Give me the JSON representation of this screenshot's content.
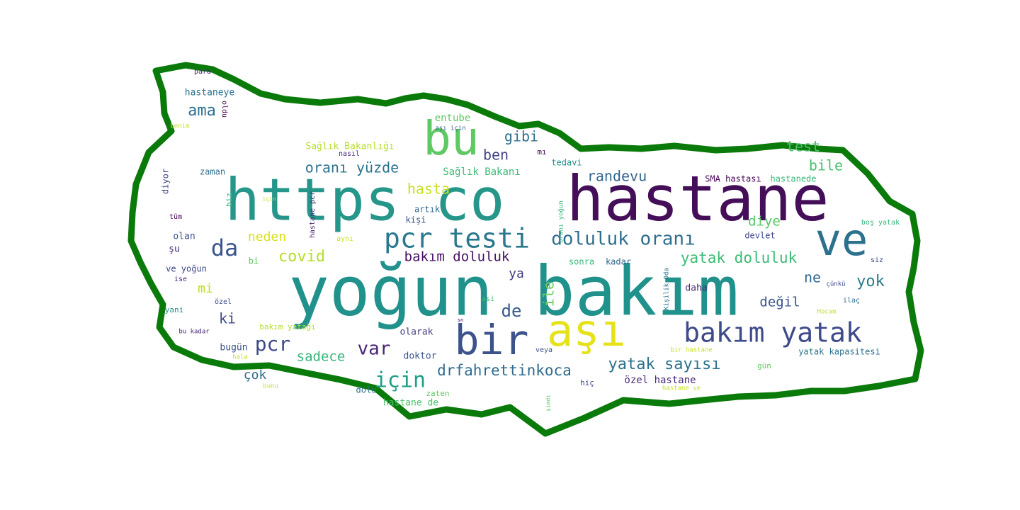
{
  "wordcloud": {
    "outline_color": "#0a7a0a",
    "background": "#ffffff",
    "words": [
      {
        "text": "yoğun bakım",
        "color": "#21918c"
      },
      {
        "text": "hastane",
        "color": "#440f58"
      },
      {
        "text": "https co",
        "color": "#26968a"
      },
      {
        "text": "ve",
        "color": "#2c718e"
      },
      {
        "text": "bu",
        "color": "#5ec962"
      },
      {
        "text": "aşı",
        "color": "#e6e21a"
      },
      {
        "text": "bir",
        "color": "#3b528b"
      },
      {
        "text": "bakım yatak",
        "color": "#3e4a89"
      },
      {
        "text": "pcr testi",
        "color": "#2a788e"
      },
      {
        "text": "doluluk oranı",
        "color": "#2e6e8e"
      },
      {
        "text": "da",
        "color": "#3a548c"
      },
      {
        "text": "pcr",
        "color": "#3e4989"
      },
      {
        "text": "için",
        "color": "#1f9f88"
      },
      {
        "text": "var",
        "color": "#482576"
      },
      {
        "text": "yatak sayısı",
        "color": "#2c728e"
      },
      {
        "text": "drfahrettinkoca",
        "color": "#2f6b8e"
      },
      {
        "text": "de",
        "color": "#38598c"
      },
      {
        "text": "yatak doluluk",
        "color": "#3cbb75"
      },
      {
        "text": "bakım doluluk",
        "color": "#471063"
      },
      {
        "text": "covid",
        "color": "#b5de2b"
      },
      {
        "text": "oranı yüzde",
        "color": "#2c738e"
      },
      {
        "text": "ama",
        "color": "#2d708e"
      },
      {
        "text": "hasta",
        "color": "#c8e020"
      },
      {
        "text": "randevu",
        "color": "#31668e"
      },
      {
        "text": "gibi",
        "color": "#2e6f8e"
      },
      {
        "text": "ben",
        "color": "#414287"
      },
      {
        "text": "neden",
        "color": "#d8e219"
      },
      {
        "text": "sadece",
        "color": "#35b779"
      },
      {
        "text": "test",
        "color": "#4ac16d"
      },
      {
        "text": "bile",
        "color": "#46c06f"
      },
      {
        "text": "diye",
        "color": "#56c667"
      },
      {
        "text": "yok",
        "color": "#287d8e"
      },
      {
        "text": "ne",
        "color": "#31688e"
      },
      {
        "text": "değil",
        "color": "#3a548c"
      },
      {
        "text": "ile",
        "color": "#6ece58"
      },
      {
        "text": "ya",
        "color": "#433e85"
      },
      {
        "text": "ki",
        "color": "#3e4989"
      },
      {
        "text": "mi",
        "color": "#bddf26"
      },
      {
        "text": "çok",
        "color": "#2f6c8e"
      },
      {
        "text": "entube",
        "color": "#5ec962"
      },
      {
        "text": "Sağlık Bakanı",
        "color": "#3cbb75"
      },
      {
        "text": "Sağlık Bakanlığı",
        "color": "#b5de2b"
      },
      {
        "text": "SMA hastası",
        "color": "#440154"
      },
      {
        "text": "hastanede",
        "color": "#35b779"
      },
      {
        "text": "yatak kapasitesi",
        "color": "#2c718e"
      },
      {
        "text": "özel hastane",
        "color": "#482878"
      },
      {
        "text": "hastane de",
        "color": "#4ac16d"
      },
      {
        "text": "olarak",
        "color": "#433e85"
      },
      {
        "text": "doktor",
        "color": "#3b528b"
      },
      {
        "text": "dolu",
        "color": "#2c718e"
      },
      {
        "text": "bugün",
        "color": "#3b528b"
      },
      {
        "text": "bakım yatağı",
        "color": "#b5de2b"
      },
      {
        "text": "sonra",
        "color": "#35b779"
      },
      {
        "text": "kadar",
        "color": "#31688e"
      },
      {
        "text": "daha",
        "color": "#482878"
      },
      {
        "text": "devlet",
        "color": "#3e4989"
      },
      {
        "text": "tedavi",
        "color": "#21918c"
      },
      {
        "text": "artık",
        "color": "#31688e"
      },
      {
        "text": "kişi",
        "color": "#3b528b"
      },
      {
        "text": "zaman",
        "color": "#2c718e"
      },
      {
        "text": "diyor",
        "color": "#3e4989"
      },
      {
        "text": "olan",
        "color": "#3b528b"
      },
      {
        "text": "şu",
        "color": "#482878"
      },
      {
        "text": "ve yoğun",
        "color": "#3e4989"
      },
      {
        "text": "bi",
        "color": "#5ec962"
      },
      {
        "text": "yani",
        "color": "#21918c"
      },
      {
        "text": "hastaneye",
        "color": "#2c718e"
      },
      {
        "text": "para",
        "color": "#482878"
      },
      {
        "text": "oldu",
        "color": "#440154"
      },
      {
        "text": "benim",
        "color": "#c8e020"
      },
      {
        "text": "nasıl",
        "color": "#482878"
      },
      {
        "text": "mı",
        "color": "#440154"
      },
      {
        "text": "aşı için",
        "color": "#31688e"
      },
      {
        "text": "biz",
        "color": "#3cbb75"
      },
      {
        "text": "tüm",
        "color": "#440154"
      },
      {
        "text": "için",
        "color": "#c8e020"
      },
      {
        "text": "hastane pcr",
        "color": "#482878"
      },
      {
        "text": "aynı",
        "color": "#c8e020"
      },
      {
        "text": "oranı yoğun",
        "color": "#35b779"
      },
      {
        "text": "boş yatak",
        "color": "#35b779"
      },
      {
        "text": "siz",
        "color": "#3e4989"
      },
      {
        "text": "çünkü",
        "color": "#3e4989"
      },
      {
        "text": "ilaç",
        "color": "#2c718e"
      },
      {
        "text": "Hocam",
        "color": "#c8e020"
      },
      {
        "text": "Kişilik Oda",
        "color": "#2c718e"
      },
      {
        "text": "özel",
        "color": "#3e4989"
      },
      {
        "text": "ise",
        "color": "#482878"
      },
      {
        "text": "bu kadar",
        "color": "#482878"
      },
      {
        "text": "asi",
        "color": "#3cbb75"
      },
      {
        "text": "veya",
        "color": "#3b528b"
      },
      {
        "text": "bir hastane",
        "color": "#c8e020"
      },
      {
        "text": "gün",
        "color": "#5ec962"
      },
      {
        "text": "hala",
        "color": "#c8e020"
      },
      {
        "text": "bunu",
        "color": "#c8e020"
      },
      {
        "text": "hiç",
        "color": "#3e4989"
      },
      {
        "text": "zaten",
        "color": "#5ec962"
      },
      {
        "text": "şimdi",
        "color": "#5ec962"
      },
      {
        "text": "hastane ve",
        "color": "#c8e020"
      },
      {
        "text": "sn",
        "color": "#440154"
      }
    ]
  }
}
